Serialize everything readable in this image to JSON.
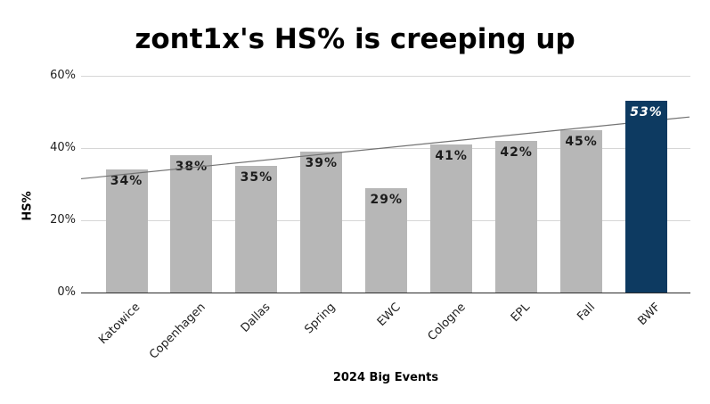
{
  "title": "zont1x's HS% is creeping up",
  "chart_data": {
    "type": "bar",
    "title": "zont1x's HS% is creeping up",
    "xlabel": "2024 Big Events",
    "ylabel": "HS%",
    "categories": [
      "Katowice",
      "Copenhagen",
      "Dallas",
      "Spring",
      "EWC",
      "Cologne",
      "EPL",
      "Fall",
      "BWF"
    ],
    "series": [
      {
        "name": "HS%",
        "values": [
          34,
          38,
          35,
          39,
          29,
          41,
          42,
          45,
          53
        ]
      }
    ],
    "value_labels": [
      "34%",
      "38%",
      "35%",
      "39%",
      "29%",
      "41%",
      "42%",
      "45%",
      "53%"
    ],
    "highlight_index": 8,
    "ylim": [
      0,
      60
    ],
    "ytick_values": [
      0,
      20,
      40,
      60
    ],
    "ytick_labels": [
      "0%",
      "20%",
      "40%",
      "60%"
    ],
    "grid": true,
    "legend": "none",
    "colors": {
      "bar": "#b7b7b7",
      "highlight_bar": "#0d3a61",
      "trendline": "#737373",
      "gridline": "#d6d6d6",
      "axis": "#2b2b2b"
    },
    "trendline": {
      "type": "linear",
      "start_pct": 31.5,
      "end_pct": 48.6
    }
  }
}
